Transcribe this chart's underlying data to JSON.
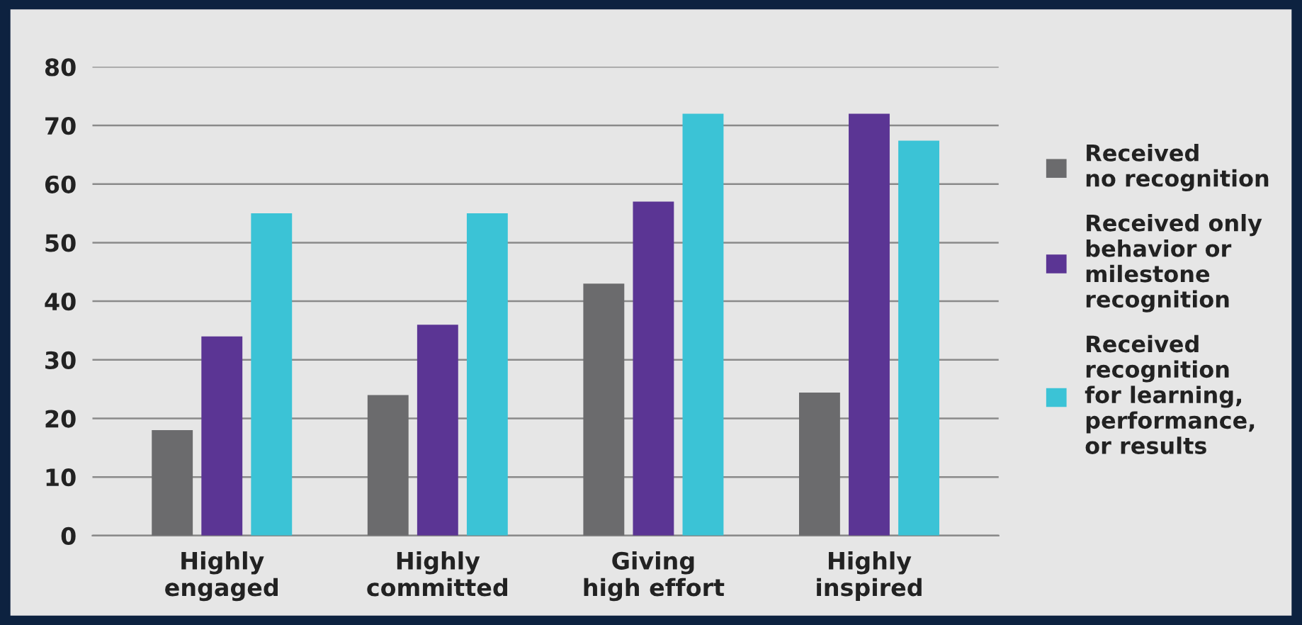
{
  "chart_data": {
    "type": "bar",
    "categories": [
      "Highly\nengaged",
      "Highly\ncommitted",
      "Giving\nhigh effort",
      "Highly\ninspired"
    ],
    "series": [
      {
        "name": "Received\nno recognition",
        "color": "#6b6b6d",
        "values": [
          18,
          24,
          43,
          24.4
        ]
      },
      {
        "name": "Received only\nbehavior or\nmilestone\nrecognition",
        "color": "#5b3594",
        "values": [
          34,
          36,
          57,
          72
        ]
      },
      {
        "name": "Received\nrecognition\nfor learning,\nperformance,\nor results",
        "color": "#3bc3d6",
        "values": [
          55,
          55,
          72,
          67.4
        ]
      }
    ],
    "ylim": [
      0,
      80
    ],
    "yticks": [
      0,
      10,
      20,
      30,
      40,
      50,
      60,
      70,
      80
    ],
    "grid": "y",
    "legend": "right"
  }
}
